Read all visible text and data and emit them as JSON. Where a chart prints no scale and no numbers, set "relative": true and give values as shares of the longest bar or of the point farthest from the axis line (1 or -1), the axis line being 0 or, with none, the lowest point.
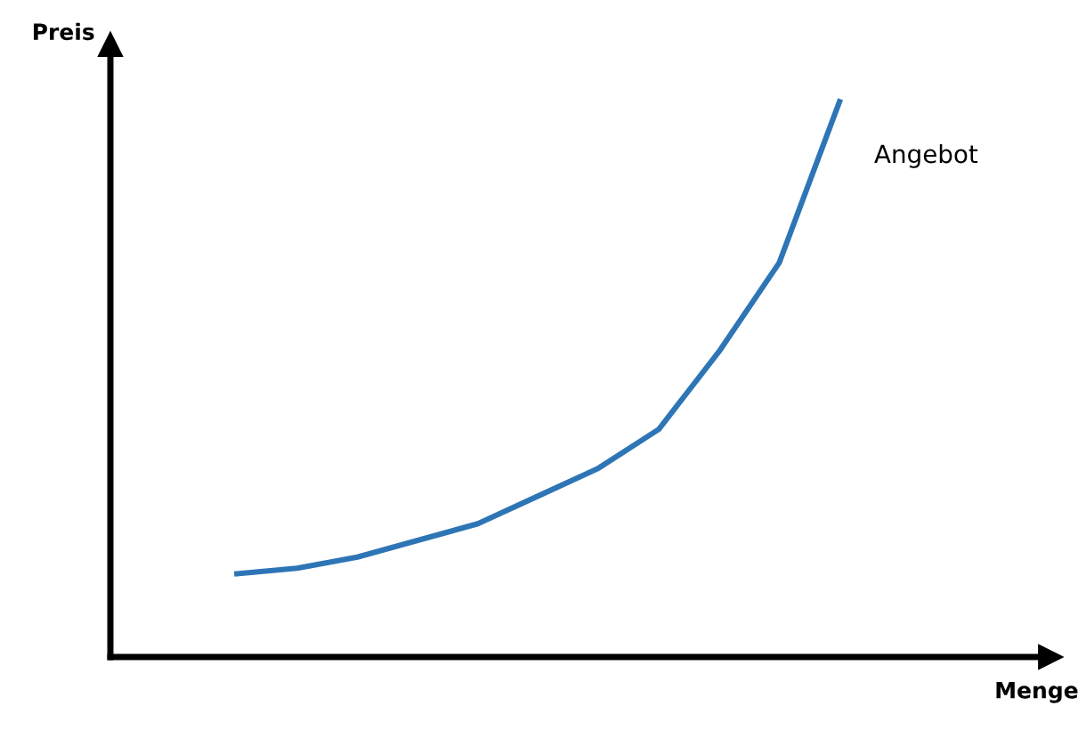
{
  "chart_data": {
    "type": "line",
    "relative": true,
    "annotations": [
      "Preis",
      "Menge"
    ],
    "categories": [
      null,
      null,
      null,
      null,
      null,
      null,
      null,
      null,
      null,
      null,
      null
    ],
    "series": [
      {
        "name": "Angebot",
        "color": "#2e75b6",
        "values": [
          0.15,
          0.16,
          0.18,
          0.21,
          0.24,
          0.29,
          0.34,
          0.41,
          0.55,
          0.71,
          1
        ]
      }
    ],
    "legend": false,
    "tick_labels": false,
    "marker": "none",
    "line_style": "solid"
  }
}
